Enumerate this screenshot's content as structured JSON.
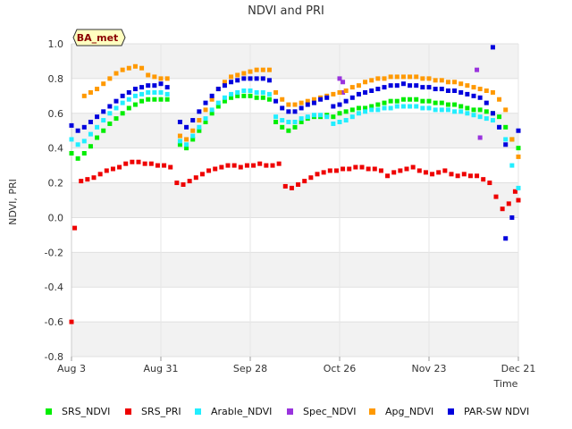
{
  "chart_data": {
    "type": "scatter",
    "title": "NDVI and PRI",
    "station": "BA_met",
    "xlabel": "Time",
    "ylabel": "NDVI, PRI",
    "ylim": [
      -0.8,
      1.0
    ],
    "xlim": [
      0,
      140
    ],
    "y_ticks": [
      "-0.8",
      "-0.6",
      "-0.4",
      "-0.2",
      "0.0",
      "0.2",
      "0.4",
      "0.6",
      "0.8",
      "1.0"
    ],
    "y_tick_values": [
      -0.8,
      -0.6,
      -0.4,
      -0.2,
      0.0,
      0.2,
      0.4,
      0.6,
      0.8,
      1.0
    ],
    "x_ticks": [
      "Aug 3",
      "Aug 31",
      "Sep 28",
      "Oct 26",
      "Nov 23",
      "Dec 21"
    ],
    "x_tick_values": [
      0,
      28,
      56,
      84,
      112,
      140
    ],
    "series": [
      {
        "name": "SRS_NDVI",
        "color": "#00ee00",
        "x": [
          0,
          2,
          4,
          6,
          8,
          10,
          12,
          14,
          16,
          18,
          20,
          22,
          24,
          26,
          28,
          30,
          34,
          36,
          38,
          40,
          42,
          44,
          46,
          48,
          50,
          52,
          54,
          56,
          58,
          60,
          62,
          64,
          66,
          68,
          70,
          72,
          74,
          76,
          78,
          80,
          82,
          84,
          86,
          88,
          90,
          92,
          94,
          96,
          98,
          100,
          102,
          104,
          106,
          108,
          110,
          112,
          114,
          116,
          118,
          120,
          122,
          124,
          126,
          128,
          130,
          132,
          134,
          136,
          138,
          140
        ],
        "y": [
          0.37,
          0.34,
          0.37,
          0.41,
          0.46,
          0.5,
          0.54,
          0.57,
          0.6,
          0.63,
          0.65,
          0.67,
          0.68,
          0.68,
          0.68,
          0.68,
          0.42,
          0.4,
          0.45,
          0.5,
          0.55,
          0.6,
          0.64,
          0.67,
          0.69,
          0.7,
          0.7,
          0.7,
          0.69,
          0.69,
          0.68,
          0.55,
          0.52,
          0.5,
          0.52,
          0.55,
          0.57,
          0.58,
          0.58,
          0.59,
          0.58,
          0.6,
          0.61,
          0.62,
          0.63,
          0.63,
          0.64,
          0.65,
          0.66,
          0.67,
          0.67,
          0.68,
          0.68,
          0.68,
          0.67,
          0.67,
          0.66,
          0.66,
          0.65,
          0.65,
          0.64,
          0.63,
          0.62,
          0.62,
          0.61,
          0.6,
          0.58,
          0.52,
          0.45,
          0.4
        ]
      },
      {
        "name": "SRS_PRI",
        "color": "#ee0000",
        "x": [
          0,
          1,
          3,
          5,
          7,
          9,
          11,
          13,
          15,
          17,
          19,
          21,
          23,
          25,
          27,
          29,
          31,
          33,
          35,
          37,
          39,
          41,
          43,
          45,
          47,
          49,
          51,
          53,
          55,
          57,
          59,
          61,
          63,
          65,
          67,
          69,
          71,
          73,
          75,
          77,
          79,
          81,
          83,
          85,
          87,
          89,
          91,
          93,
          95,
          97,
          99,
          101,
          103,
          105,
          107,
          109,
          111,
          113,
          115,
          117,
          119,
          121,
          123,
          125,
          127,
          129,
          131,
          133,
          135,
          137,
          139,
          140
        ],
        "y": [
          -0.6,
          -0.06,
          0.21,
          0.22,
          0.23,
          0.25,
          0.27,
          0.28,
          0.29,
          0.31,
          0.32,
          0.32,
          0.31,
          0.31,
          0.3,
          0.3,
          0.29,
          0.2,
          0.19,
          0.21,
          0.23,
          0.25,
          0.27,
          0.28,
          0.29,
          0.3,
          0.3,
          0.29,
          0.3,
          0.3,
          0.31,
          0.3,
          0.3,
          0.31,
          0.18,
          0.17,
          0.19,
          0.21,
          0.23,
          0.25,
          0.26,
          0.27,
          0.27,
          0.28,
          0.28,
          0.29,
          0.29,
          0.28,
          0.28,
          0.27,
          0.24,
          0.26,
          0.27,
          0.28,
          0.29,
          0.27,
          0.26,
          0.25,
          0.26,
          0.27,
          0.25,
          0.24,
          0.25,
          0.24,
          0.24,
          0.22,
          0.2,
          0.12,
          0.05,
          0.08,
          0.15,
          0.1
        ]
      },
      {
        "name": "Arable_NDVI",
        "color": "#22eeff",
        "x": [
          0,
          2,
          4,
          6,
          8,
          10,
          12,
          14,
          16,
          18,
          20,
          22,
          24,
          26,
          28,
          30,
          34,
          36,
          38,
          40,
          42,
          44,
          46,
          48,
          50,
          52,
          54,
          56,
          58,
          60,
          62,
          64,
          66,
          68,
          70,
          72,
          74,
          76,
          78,
          80,
          82,
          84,
          86,
          88,
          90,
          92,
          94,
          96,
          98,
          100,
          102,
          104,
          106,
          108,
          110,
          112,
          114,
          116,
          118,
          120,
          122,
          124,
          126,
          128,
          130,
          132,
          134,
          136,
          138,
          140
        ],
        "y": [
          0.45,
          0.42,
          0.44,
          0.48,
          0.52,
          0.56,
          0.6,
          0.63,
          0.66,
          0.68,
          0.7,
          0.71,
          0.72,
          0.72,
          0.72,
          0.71,
          0.44,
          0.42,
          0.47,
          0.52,
          0.57,
          0.62,
          0.66,
          0.69,
          0.71,
          0.72,
          0.73,
          0.73,
          0.72,
          0.72,
          0.71,
          0.58,
          0.56,
          0.55,
          0.55,
          0.57,
          0.58,
          0.59,
          0.59,
          0.58,
          0.54,
          0.55,
          0.56,
          0.58,
          0.6,
          0.61,
          0.62,
          0.62,
          0.63,
          0.63,
          0.64,
          0.64,
          0.64,
          0.64,
          0.63,
          0.63,
          0.62,
          0.62,
          0.62,
          0.61,
          0.61,
          0.6,
          0.59,
          0.58,
          0.57,
          0.56,
          0.52,
          0.45,
          0.3,
          0.17
        ]
      },
      {
        "name": "Spec_NDVI",
        "color": "#9933dd",
        "x": [
          84,
          85,
          85,
          127,
          128
        ],
        "y": [
          0.8,
          0.78,
          0.72,
          0.85,
          0.46
        ],
        "extra_note": ""
      },
      {
        "name": "Apg_NDVI",
        "color": "#ff9900",
        "x": [
          4,
          6,
          8,
          10,
          12,
          14,
          16,
          18,
          20,
          22,
          24,
          26,
          28,
          30,
          34,
          36,
          38,
          40,
          42,
          44,
          46,
          48,
          50,
          52,
          54,
          56,
          58,
          60,
          62,
          64,
          66,
          68,
          70,
          72,
          74,
          76,
          78,
          80,
          82,
          84,
          86,
          88,
          90,
          92,
          94,
          96,
          98,
          100,
          102,
          104,
          106,
          108,
          110,
          112,
          114,
          116,
          118,
          120,
          122,
          124,
          126,
          128,
          130,
          132,
          134,
          136,
          138,
          140
        ],
        "y": [
          0.7,
          0.72,
          0.74,
          0.77,
          0.8,
          0.83,
          0.85,
          0.86,
          0.87,
          0.86,
          0.82,
          0.81,
          0.8,
          0.8,
          0.47,
          0.45,
          0.5,
          0.56,
          0.62,
          0.68,
          0.74,
          0.78,
          0.81,
          0.82,
          0.83,
          0.84,
          0.85,
          0.85,
          0.85,
          0.72,
          0.68,
          0.65,
          0.65,
          0.66,
          0.67,
          0.68,
          0.69,
          0.7,
          0.71,
          0.72,
          0.73,
          0.75,
          0.76,
          0.78,
          0.79,
          0.8,
          0.8,
          0.81,
          0.81,
          0.81,
          0.81,
          0.81,
          0.8,
          0.8,
          0.79,
          0.79,
          0.78,
          0.78,
          0.77,
          0.76,
          0.75,
          0.74,
          0.73,
          0.72,
          0.68,
          0.62,
          0.45,
          0.35
        ]
      },
      {
        "name": "PAR-SW NDVI",
        "color": "#0000dd",
        "x": [
          0,
          2,
          4,
          6,
          8,
          10,
          12,
          14,
          16,
          18,
          20,
          22,
          24,
          26,
          28,
          30,
          34,
          36,
          38,
          40,
          42,
          44,
          46,
          48,
          50,
          52,
          54,
          56,
          58,
          60,
          62,
          64,
          66,
          68,
          70,
          72,
          74,
          76,
          78,
          80,
          82,
          84,
          86,
          88,
          90,
          92,
          94,
          96,
          98,
          100,
          102,
          104,
          106,
          108,
          110,
          112,
          114,
          116,
          118,
          120,
          122,
          124,
          126,
          128,
          130,
          132,
          134,
          136,
          138,
          140,
          132,
          136
        ],
        "y": [
          0.53,
          0.5,
          0.52,
          0.55,
          0.58,
          0.61,
          0.64,
          0.67,
          0.7,
          0.72,
          0.74,
          0.75,
          0.76,
          0.76,
          0.77,
          0.75,
          0.55,
          0.52,
          0.56,
          0.61,
          0.66,
          0.7,
          0.74,
          0.76,
          0.78,
          0.79,
          0.8,
          0.8,
          0.8,
          0.8,
          0.79,
          0.67,
          0.63,
          0.61,
          0.61,
          0.63,
          0.65,
          0.66,
          0.68,
          0.69,
          0.64,
          0.65,
          0.67,
          0.69,
          0.71,
          0.72,
          0.73,
          0.74,
          0.75,
          0.76,
          0.76,
          0.77,
          0.76,
          0.76,
          0.75,
          0.75,
          0.74,
          0.74,
          0.73,
          0.73,
          0.72,
          0.71,
          0.7,
          0.69,
          0.66,
          0.6,
          0.52,
          0.42,
          0.0,
          0.5,
          0.98,
          -0.12
        ]
      }
    ]
  }
}
